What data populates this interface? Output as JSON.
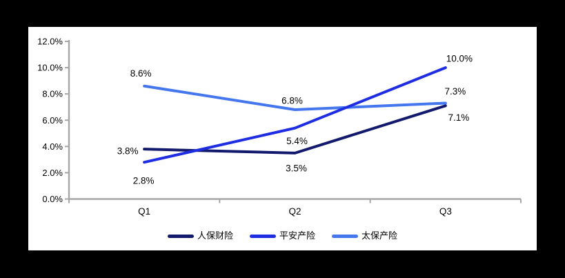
{
  "chart_data": {
    "type": "line",
    "categories": [
      "Q1",
      "Q2",
      "Q3"
    ],
    "series": [
      {
        "name": "人保财险",
        "color": "#131a6d",
        "values": [
          3.8,
          3.5,
          7.1
        ],
        "data_labels": [
          "3.8%",
          "3.5%",
          "7.1%"
        ]
      },
      {
        "name": "平安产险",
        "color": "#1e2de2",
        "values": [
          2.8,
          5.4,
          10.0
        ],
        "data_labels": [
          "2.8%",
          "5.4%",
          "10.0%"
        ]
      },
      {
        "name": "太保产险",
        "color": "#4477ee",
        "values": [
          8.6,
          6.8,
          7.3
        ],
        "data_labels": [
          "8.6%",
          "6.8%",
          "7.3%"
        ]
      }
    ],
    "y_axis": {
      "min": 0,
      "max": 12,
      "step": 2,
      "tick_labels": [
        "0.0%",
        "2.0%",
        "4.0%",
        "6.0%",
        "8.0%",
        "10.0%",
        "12.0%"
      ]
    },
    "x_axis": {
      "tick_labels": [
        "Q1",
        "Q2",
        "Q3"
      ]
    },
    "legend": {
      "position": "bottom",
      "entries": [
        "人保财险",
        "平安产险",
        "太保产险"
      ]
    },
    "grid": false,
    "title": "",
    "colors": {
      "axis": "#a6a6a6",
      "label_text": "#000000",
      "panel_bg": "#ffffff",
      "page_bg": "#000000"
    },
    "layout_hints": {
      "z_order": [
        0,
        2,
        1
      ],
      "label_offsets": [
        [
          [
            -24,
            3
          ],
          [
            2,
            22
          ],
          [
            19,
            17
          ]
        ],
        [
          [
            -1,
            27
          ],
          [
            3,
            19
          ],
          [
            20,
            -13
          ]
        ],
        [
          [
            -5,
            -18
          ],
          [
            -4,
            -13
          ],
          [
            14,
            -17
          ]
        ]
      ]
    }
  }
}
